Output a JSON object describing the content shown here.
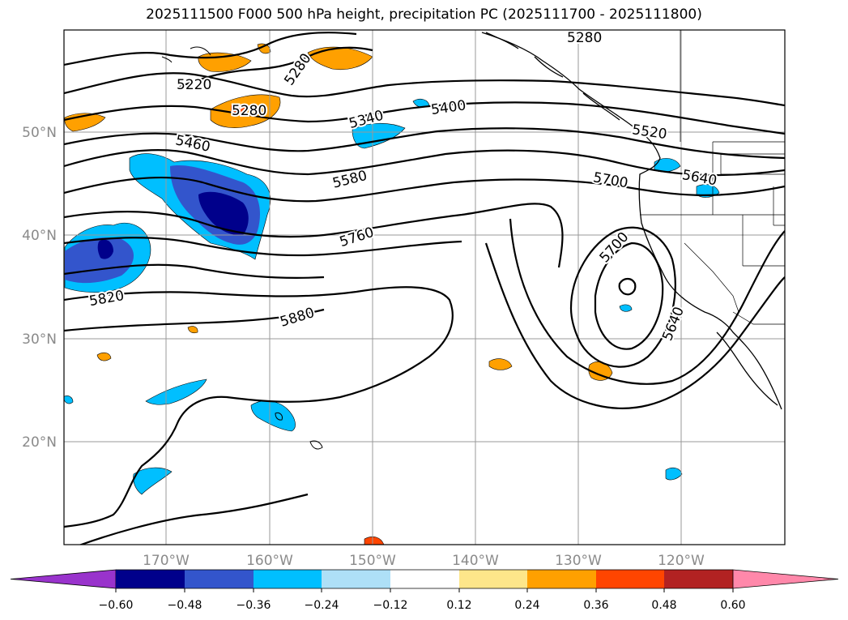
{
  "title": "2025111500 F000 500 hPa height, precipitation PC (2025111700 - 2025111800)",
  "map": {
    "lat_labels": [
      "50°N",
      "40°N",
      "30°N",
      "20°N"
    ],
    "lon_labels": [
      "170°W",
      "160°W",
      "150°W",
      "140°W",
      "130°W",
      "120°W"
    ],
    "contour_labels": [
      "5220",
      "5280",
      "5280",
      "5340",
      "5400",
      "5460",
      "5520",
      "5580",
      "5640",
      "5700",
      "5700",
      "5760",
      "5820",
      "5880",
      "5640",
      "5280"
    ]
  },
  "colorbar": {
    "ticks": [
      "−0.60",
      "−0.48",
      "−0.36",
      "−0.24",
      "−0.12",
      "0.12",
      "0.24",
      "0.36",
      "0.48",
      "0.60"
    ],
    "colors": [
      "#9933cc",
      "#00008b",
      "#3355cc",
      "#00bfff",
      "#aee0f7",
      "#ffffff",
      "#fde68a",
      "#ffa000",
      "#ff4500",
      "#b22222",
      "#ff88aa"
    ]
  }
}
